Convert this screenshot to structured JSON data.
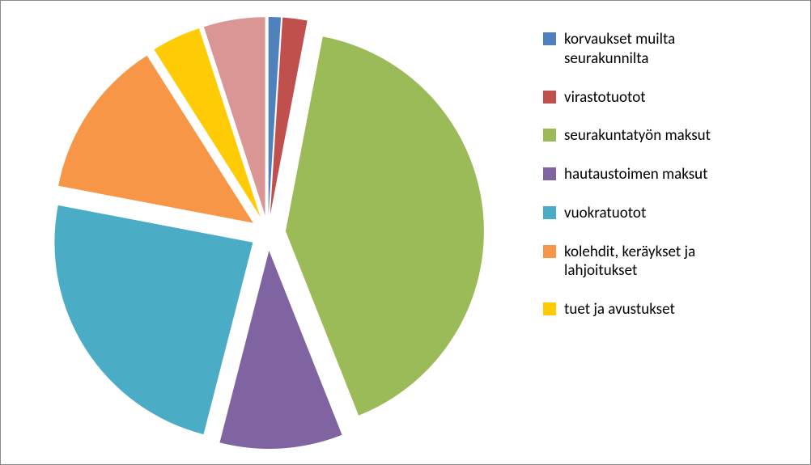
{
  "chart": {
    "type": "pie",
    "background_color": "#ffffff",
    "border_color": "#8a8a8a",
    "legend_fontsize": 19,
    "legend_text_color": "#000000",
    "pie_radius": 245,
    "explode_offset": 22,
    "series": [
      {
        "label": "korvaukset muilta\nseurakunnilta",
        "value": 1.0,
        "color": "#4f81bd"
      },
      {
        "label": "virastotuotot",
        "value": 2.0,
        "color": "#c0504d"
      },
      {
        "label": "seurakuntatyön maksut",
        "value": 41.0,
        "color": "#9bbb59"
      },
      {
        "label": "hautaustoimen maksut",
        "value": 10.0,
        "color": "#8064a2"
      },
      {
        "label": "vuokratuotot",
        "value": 24.0,
        "color": "#4bacc6"
      },
      {
        "label": "kolehdit, keräykset ja\nlahjoitukset",
        "value": 13.0,
        "color": "#f79646"
      },
      {
        "label": "tuet ja avustukset",
        "value": 4.0,
        "color": "#ffcb05"
      },
      {
        "label": "",
        "value": 5.0,
        "color": "#d99694"
      }
    ]
  }
}
